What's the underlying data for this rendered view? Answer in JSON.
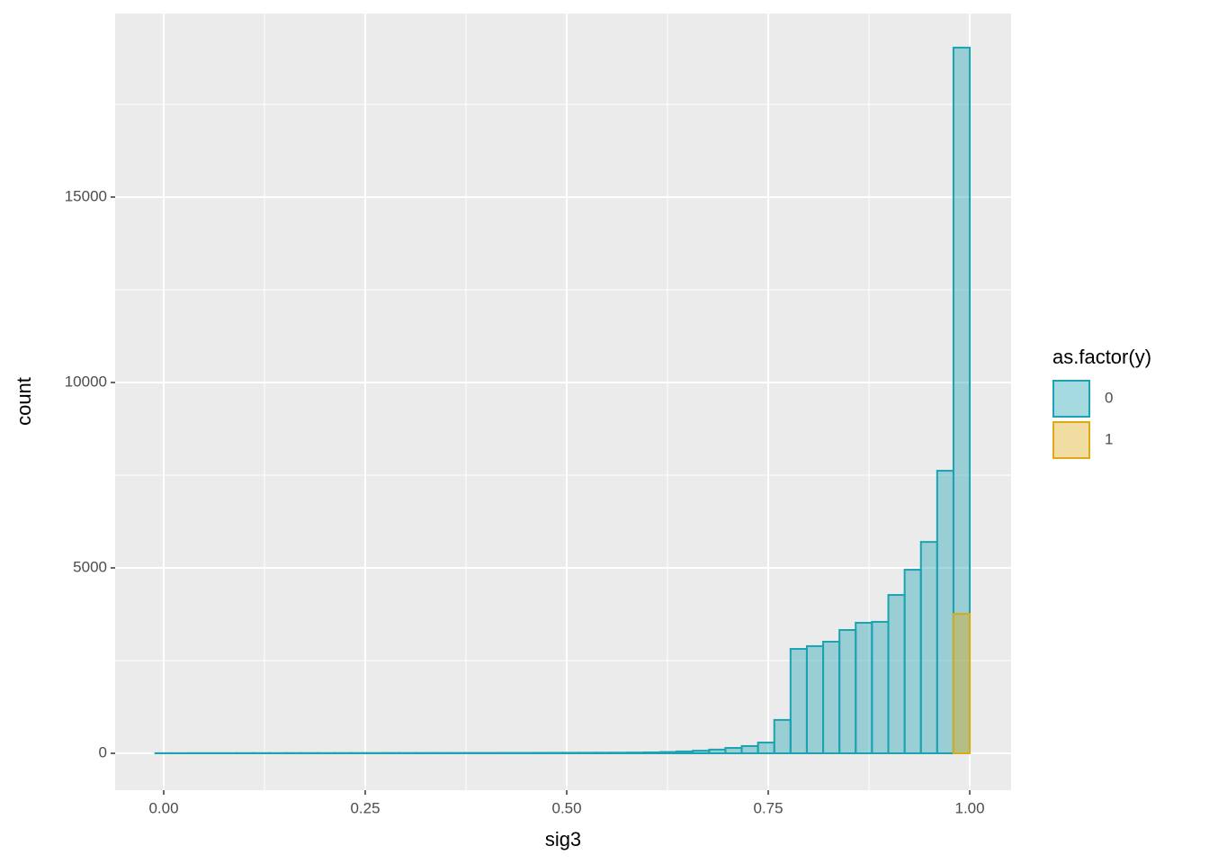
{
  "chart_data": {
    "type": "histogram",
    "x_label": "sig3",
    "y_label": "count",
    "legend_title": "as.factor(y)",
    "bins": [
      -0.0104,
      0.0098,
      0.03,
      0.0502,
      0.0704,
      0.0906,
      0.1109,
      0.1311,
      0.1513,
      0.1715,
      0.1917,
      0.2119,
      0.2321,
      0.2523,
      0.2725,
      0.2927,
      0.3129,
      0.3331,
      0.3533,
      0.3735,
      0.3938,
      0.414,
      0.4342,
      0.4544,
      0.4746,
      0.4948,
      0.515,
      0.5352,
      0.5554,
      0.5756,
      0.5958,
      0.616,
      0.6362,
      0.6565,
      0.6767,
      0.6969,
      0.7171,
      0.7373,
      0.7575,
      0.7777,
      0.7979,
      0.8181,
      0.8383,
      0.8585,
      0.8787,
      0.899,
      0.9192,
      0.9394,
      0.9596,
      0.9798,
      1.0
    ],
    "series": [
      {
        "name": "0",
        "color": "#1ba3b2",
        "values": [
          3,
          3,
          4,
          4,
          4,
          5,
          5,
          5,
          6,
          6,
          6,
          7,
          7,
          7,
          8,
          8,
          8,
          9,
          9,
          10,
          10,
          11,
          11,
          12,
          13,
          14,
          15,
          16,
          17,
          20,
          25,
          35,
          50,
          70,
          100,
          145,
          195,
          290,
          900,
          2815,
          2890,
          3010,
          3325,
          3520,
          3545,
          4270,
          4950,
          5700,
          7620,
          19030
        ]
      },
      {
        "name": "1",
        "color": "#dcaa14",
        "values": [
          0,
          0,
          0,
          0,
          0,
          0,
          0,
          0,
          0,
          0,
          0,
          0,
          0,
          0,
          0,
          0,
          0,
          0,
          0,
          0,
          0,
          0,
          0,
          0,
          0,
          0,
          0,
          0,
          0,
          0,
          0,
          0,
          0,
          0,
          0,
          0,
          0,
          0,
          0,
          0,
          0,
          0,
          0,
          0,
          0,
          0,
          0,
          0,
          0,
          3760
        ]
      }
    ],
    "xlim": [
      -0.0603,
      1.0513
    ],
    "ylim": [
      -995,
      19950
    ],
    "xticks": [
      {
        "value": 0,
        "label": "0.00"
      },
      {
        "value": 0.25,
        "label": "0.25"
      },
      {
        "value": 0.5,
        "label": "0.50"
      },
      {
        "value": 0.75,
        "label": "0.75"
      },
      {
        "value": 1,
        "label": "1.00"
      }
    ],
    "yticks": [
      0,
      5000,
      10000,
      15000
    ],
    "grid": true
  }
}
